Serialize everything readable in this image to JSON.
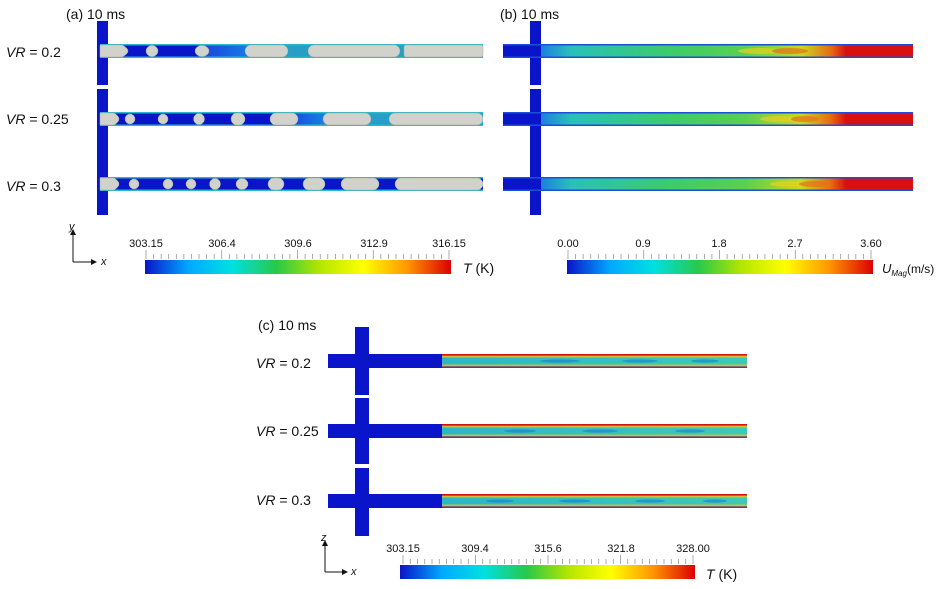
{
  "panel_a": {
    "title": "(a) 10 ms",
    "rows": [
      {
        "label_prefix": "VR",
        "label_value": " = 0.2"
      },
      {
        "label_prefix": "VR",
        "label_value": " = 0.25"
      },
      {
        "label_prefix": "VR",
        "label_value": " = 0.3"
      }
    ],
    "axis": {
      "vertical": "y",
      "horizontal": "x"
    },
    "colorbar": {
      "ticks": [
        "303.15",
        "306.4",
        "309.6",
        "312.9",
        "316.15"
      ],
      "unit_var": "T",
      "unit_rest": " (K)",
      "colors": [
        "#0a14c8",
        "#00aaff",
        "#00e0e0",
        "#28c84a",
        "#b4e600",
        "#ffff00",
        "#ff9600",
        "#dc0000"
      ]
    }
  },
  "panel_b": {
    "title": "(b) 10 ms",
    "colorbar": {
      "ticks": [
        "0.00",
        "0.9",
        "1.8",
        "2.7",
        "3.60"
      ],
      "unit_var": "U",
      "unit_sub": "Mag",
      "unit_rest": "(m/s)",
      "colors": [
        "#0a14c8",
        "#00aaff",
        "#00e0e0",
        "#28c84a",
        "#b4e600",
        "#ffff00",
        "#ff9600",
        "#dc0000"
      ]
    }
  },
  "panel_c": {
    "title": "(c) 10 ms",
    "rows": [
      {
        "label_prefix": "VR",
        "label_value": " = 0.2"
      },
      {
        "label_prefix": "VR",
        "label_value": " = 0.25"
      },
      {
        "label_prefix": "VR",
        "label_value": " = 0.3"
      }
    ],
    "axis": {
      "vertical": "z",
      "horizontal": "x"
    },
    "colorbar": {
      "ticks": [
        "303.15",
        "309.4",
        "315.6",
        "321.8",
        "328.00"
      ],
      "unit_var": "T",
      "unit_rest": " (K)",
      "colors": [
        "#0a14c8",
        "#00aaff",
        "#00e0e0",
        "#28c84a",
        "#b4e600",
        "#ffff00",
        "#ff9600",
        "#dc0000"
      ]
    }
  },
  "colors": {
    "fluid_blue": "#0a14c8",
    "droplet": "#d2d2cc",
    "cyan_field": "#2ab7c8",
    "green_field": "#3ec85a",
    "hot_red": "#d81010"
  }
}
